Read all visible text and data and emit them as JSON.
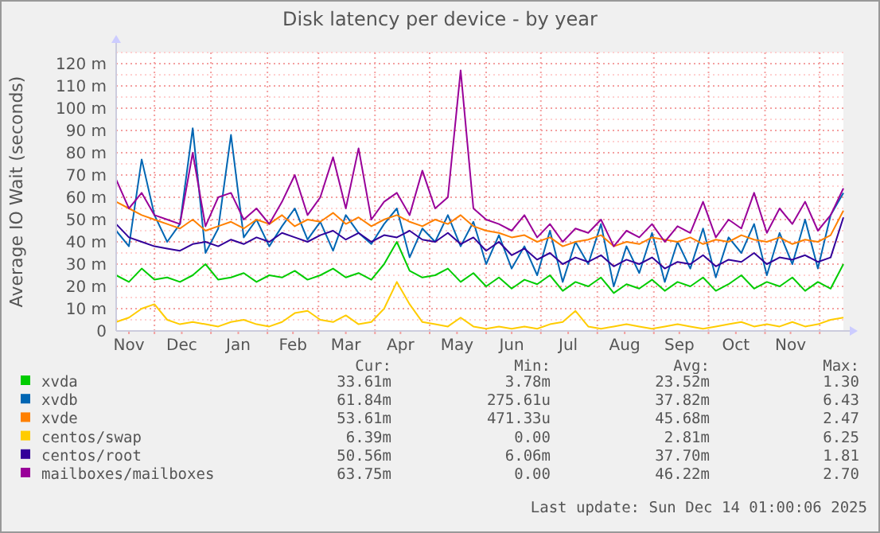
{
  "chart_data": {
    "type": "line",
    "title": "Disk latency per device - by year",
    "ylabel": "Average IO Wait (seconds)",
    "x": [
      "2024-11-10",
      "2024-11-17",
      "2024-11-24",
      "2024-12-01",
      "2024-12-08",
      "2024-12-15",
      "2024-12-22",
      "2024-12-29",
      "2025-01-05",
      "2025-01-12",
      "2025-01-19",
      "2025-01-26",
      "2025-02-02",
      "2025-02-09",
      "2025-02-16",
      "2025-02-23",
      "2025-03-02",
      "2025-03-09",
      "2025-03-16",
      "2025-03-23",
      "2025-03-30",
      "2025-04-06",
      "2025-04-13",
      "2025-04-20",
      "2025-04-27",
      "2025-05-04",
      "2025-05-11",
      "2025-05-18",
      "2025-05-25",
      "2025-06-01",
      "2025-06-08",
      "2025-06-15",
      "2025-06-22",
      "2025-06-29",
      "2025-07-06",
      "2025-07-13",
      "2025-07-20",
      "2025-07-27",
      "2025-08-03",
      "2025-08-10",
      "2025-08-17",
      "2025-08-24",
      "2025-08-31",
      "2025-09-07",
      "2025-09-14",
      "2025-09-21",
      "2025-09-28",
      "2025-10-05",
      "2025-10-12",
      "2025-10-19",
      "2025-10-26",
      "2025-11-02",
      "2025-11-09",
      "2025-11-16",
      "2025-11-23",
      "2025-11-30",
      "2025-12-07",
      "2025-12-14"
    ],
    "series": [
      {
        "name": "xvda",
        "color": "#00cc00",
        "values": [
          25,
          22,
          28,
          23,
          24,
          22,
          25,
          30,
          23,
          24,
          26,
          22,
          25,
          24,
          27,
          23,
          25,
          28,
          24,
          26,
          23,
          30,
          40,
          27,
          24,
          25,
          28,
          22,
          26,
          20,
          24,
          19,
          23,
          21,
          25,
          18,
          22,
          20,
          24,
          17,
          21,
          19,
          23,
          18,
          22,
          20,
          24,
          18,
          21,
          25,
          19,
          22,
          20,
          24,
          18,
          22,
          19,
          30
        ]
      },
      {
        "name": "xvdb",
        "color": "#0066b3",
        "values": [
          45,
          38,
          77,
          52,
          40,
          48,
          91,
          35,
          46,
          88,
          42,
          50,
          38,
          47,
          55,
          41,
          49,
          36,
          52,
          44,
          39,
          48,
          55,
          33,
          46,
          40,
          52,
          38,
          49,
          30,
          43,
          28,
          38,
          25,
          45,
          22,
          40,
          30,
          48,
          20,
          38,
          26,
          44,
          22,
          40,
          28,
          46,
          24,
          42,
          35,
          48,
          25,
          44,
          30,
          50,
          28,
          52,
          62
        ]
      },
      {
        "name": "xvde",
        "color": "#ff8000",
        "values": [
          58,
          55,
          52,
          50,
          48,
          46,
          50,
          45,
          47,
          49,
          46,
          50,
          48,
          52,
          47,
          50,
          49,
          53,
          48,
          51,
          47,
          50,
          52,
          49,
          47,
          50,
          48,
          52,
          47,
          45,
          44,
          42,
          43,
          40,
          42,
          38,
          40,
          41,
          43,
          38,
          40,
          39,
          42,
          41,
          40,
          42,
          39,
          41,
          40,
          43,
          41,
          40,
          42,
          39,
          41,
          40,
          43,
          54
        ]
      },
      {
        "name": "centos/swap",
        "color": "#ffcc00",
        "values": [
          4,
          6,
          10,
          12,
          5,
          3,
          4,
          3,
          2,
          4,
          5,
          3,
          2,
          4,
          8,
          9,
          5,
          4,
          7,
          3,
          4,
          10,
          22,
          12,
          4,
          3,
          2,
          6,
          2,
          1,
          2,
          1,
          2,
          1,
          3,
          4,
          9,
          2,
          1,
          2,
          3,
          2,
          1,
          2,
          3,
          2,
          1,
          2,
          3,
          4,
          2,
          3,
          2,
          4,
          2,
          3,
          5,
          6
        ]
      },
      {
        "name": "centos/root",
        "color": "#330099",
        "values": [
          48,
          42,
          40,
          38,
          37,
          36,
          39,
          40,
          38,
          41,
          39,
          42,
          40,
          44,
          42,
          40,
          43,
          45,
          41,
          44,
          40,
          43,
          42,
          45,
          41,
          40,
          44,
          39,
          42,
          36,
          40,
          34,
          37,
          32,
          35,
          30,
          33,
          31,
          34,
          29,
          32,
          30,
          33,
          28,
          31,
          30,
          34,
          29,
          32,
          31,
          35,
          30,
          33,
          32,
          34,
          31,
          33,
          51
        ]
      },
      {
        "name": "mailboxes/mailboxes",
        "color": "#990099",
        "values": [
          68,
          55,
          62,
          52,
          50,
          48,
          80,
          47,
          60,
          62,
          50,
          55,
          48,
          58,
          70,
          52,
          60,
          78,
          55,
          82,
          50,
          58,
          62,
          52,
          72,
          55,
          60,
          117,
          55,
          50,
          48,
          45,
          52,
          42,
          48,
          40,
          46,
          44,
          50,
          38,
          45,
          42,
          48,
          40,
          47,
          44,
          58,
          42,
          50,
          46,
          62,
          44,
          55,
          48,
          58,
          45,
          52,
          64
        ]
      }
    ],
    "xlim": [
      "2024-11-10",
      "2025-12-14"
    ],
    "xticks": [
      {
        "value": "2024-11-17",
        "label": "Nov"
      },
      {
        "value": "2024-12-01",
        "label": null
      },
      {
        "value": "2024-12-16",
        "label": "Dec"
      },
      {
        "value": "2025-01-01",
        "label": null
      },
      {
        "value": "2025-01-16",
        "label": "Jan"
      },
      {
        "value": "2025-02-01",
        "label": null
      },
      {
        "value": "2025-02-15",
        "label": "Feb"
      },
      {
        "value": "2025-03-01",
        "label": null
      },
      {
        "value": "2025-03-16",
        "label": "Mar"
      },
      {
        "value": "2025-04-01",
        "label": null
      },
      {
        "value": "2025-04-15",
        "label": "Apr"
      },
      {
        "value": "2025-05-01",
        "label": null
      },
      {
        "value": "2025-05-16",
        "label": "May"
      },
      {
        "value": "2025-06-01",
        "label": null
      },
      {
        "value": "2025-06-15",
        "label": "Jun"
      },
      {
        "value": "2025-07-01",
        "label": null
      },
      {
        "value": "2025-07-16",
        "label": "Jul"
      },
      {
        "value": "2025-08-01",
        "label": null
      },
      {
        "value": "2025-08-16",
        "label": "Aug"
      },
      {
        "value": "2025-09-01",
        "label": null
      },
      {
        "value": "2025-09-15",
        "label": "Sep"
      },
      {
        "value": "2025-10-01",
        "label": null
      },
      {
        "value": "2025-10-16",
        "label": "Oct"
      },
      {
        "value": "2025-11-01",
        "label": null
      },
      {
        "value": "2025-11-15",
        "label": "Nov"
      },
      {
        "value": "2025-12-01",
        "label": null
      }
    ],
    "ylim": [
      0,
      125
    ],
    "yticks": [
      0,
      {
        "value": 5,
        "label": null
      },
      {
        "value": 10,
        "label": "10 m"
      },
      {
        "value": 15,
        "label": null
      },
      {
        "value": 20,
        "label": "20 m"
      },
      {
        "value": 25,
        "label": null
      },
      {
        "value": 30,
        "label": "30 m"
      },
      {
        "value": 35,
        "label": null
      },
      {
        "value": 40,
        "label": "40 m"
      },
      {
        "value": 45,
        "label": null
      },
      {
        "value": 50,
        "label": "50 m"
      },
      {
        "value": 55,
        "label": null
      },
      {
        "value": 60,
        "label": "60 m"
      },
      {
        "value": 65,
        "label": null
      },
      {
        "value": 70,
        "label": "70 m"
      },
      {
        "value": 75,
        "label": null
      },
      {
        "value": 80,
        "label": "80 m"
      },
      {
        "value": 85,
        "label": null
      },
      {
        "value": 90,
        "label": "90 m"
      },
      {
        "value": 95,
        "label": null
      },
      {
        "value": 100,
        "label": "100 m"
      },
      {
        "value": 105,
        "label": null
      },
      {
        "value": 110,
        "label": "110 m"
      },
      {
        "value": 115,
        "label": null
      },
      {
        "value": 120,
        "label": "120 m"
      },
      {
        "value": 125,
        "label": null
      }
    ],
    "grid": true,
    "legend": "bottom",
    "marker": "none",
    "line_style": "solid",
    "annotations": [
      "Cur:",
      "Min:",
      "Avg:",
      "Max:",
      "33.61m",
      "3.78m",
      "23.52m",
      "1.30",
      "61.84m",
      "275.61u",
      "37.82m",
      "6.43",
      "53.61m",
      "471.33u",
      "45.68m",
      "2.47",
      "6.39m",
      "0.00",
      "2.81m",
      "6.25",
      "50.56m",
      "6.06m",
      "37.70m",
      "1.81",
      "63.75m",
      "0.00",
      "46.22m",
      "2.70",
      "Last update: Sun Dec 14 01:00:06 2025"
    ]
  }
}
